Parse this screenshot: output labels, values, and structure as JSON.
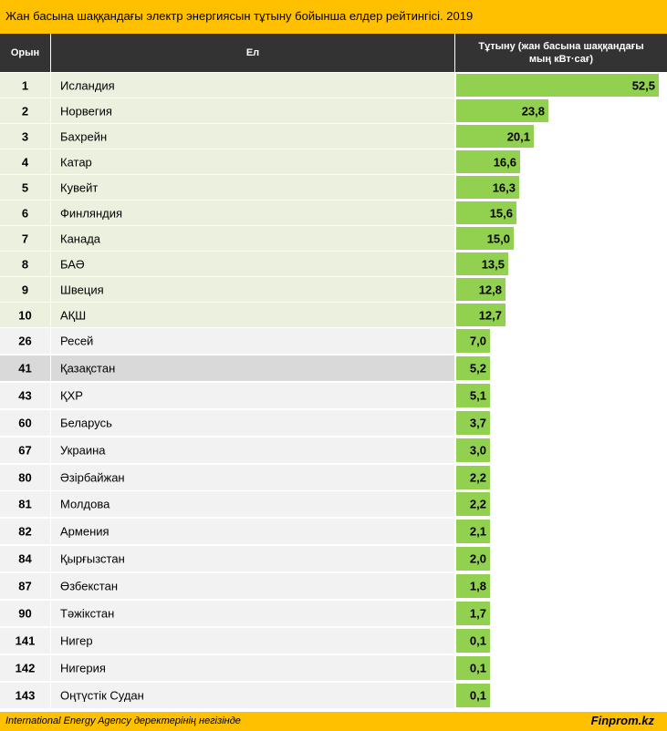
{
  "title": "Жан басына шаққандағы электр энергиясын тұтыну бойынша елдер рейтингісі. 2019",
  "header": {
    "rank": "Орын",
    "country": "Ел",
    "value_line1": "Тұтыну (жан басына шаққандағы",
    "value_line2": "мың  кВт·сағ)"
  },
  "colors": {
    "bar": "#92d050",
    "title_bg": "#ffc000",
    "header_bg": "#333333"
  },
  "chart_data": {
    "type": "bar",
    "orientation": "horizontal",
    "title": "Жан басына шаққандағы электр энергиясын тұтыну бойынша елдер рейтингісі. 2019",
    "xlabel": "Тұтыну (жан басына шаққандағы мың  кВт·сағ)",
    "ylabel": "Ел",
    "xlim": [
      0,
      52.5
    ],
    "rows": [
      {
        "rank": "1",
        "country": "Исландия",
        "value": 52.5,
        "label": "52,5"
      },
      {
        "rank": "2",
        "country": "Норвегия",
        "value": 23.8,
        "label": "23,8"
      },
      {
        "rank": "3",
        "country": "Бахрейн",
        "value": 20.1,
        "label": "20,1"
      },
      {
        "rank": "4",
        "country": "Катар",
        "value": 16.6,
        "label": "16,6"
      },
      {
        "rank": "5",
        "country": "Кувейт",
        "value": 16.3,
        "label": "16,3"
      },
      {
        "rank": "6",
        "country": "Финляндия",
        "value": 15.6,
        "label": "15,6"
      },
      {
        "rank": "7",
        "country": "Канада",
        "value": 15.0,
        "label": "15,0"
      },
      {
        "rank": "8",
        "country": "БАӘ",
        "value": 13.5,
        "label": "13,5"
      },
      {
        "rank": "9",
        "country": "Швеция",
        "value": 12.8,
        "label": "12,8"
      },
      {
        "rank": "10",
        "country": "АҚШ",
        "value": 12.7,
        "label": "12,7"
      },
      {
        "rank": "26",
        "country": "Ресей",
        "value": 7.0,
        "label": "7,0"
      },
      {
        "rank": "41",
        "country": "Қазақстан",
        "value": 5.2,
        "label": "5,2"
      },
      {
        "rank": "43",
        "country": "ҚХР",
        "value": 5.1,
        "label": "5,1"
      },
      {
        "rank": "60",
        "country": "Беларусь",
        "value": 3.7,
        "label": "3,7"
      },
      {
        "rank": "67",
        "country": "Украина",
        "value": 3.0,
        "label": "3,0"
      },
      {
        "rank": "80",
        "country": "Әзірбайжан",
        "value": 2.2,
        "label": "2,2"
      },
      {
        "rank": "81",
        "country": "Молдова",
        "value": 2.2,
        "label": "2,2"
      },
      {
        "rank": "82",
        "country": "Армения",
        "value": 2.1,
        "label": "2,1"
      },
      {
        "rank": "84",
        "country": "Қырғызстан",
        "value": 2.0,
        "label": "2,0"
      },
      {
        "rank": "87",
        "country": "Өзбекстан",
        "value": 1.8,
        "label": "1,8"
      },
      {
        "rank": "90",
        "country": "Тәжікстан",
        "value": 1.7,
        "label": "1,7"
      },
      {
        "rank": "141",
        "country": "Нигер",
        "value": 0.1,
        "label": "0,1"
      },
      {
        "rank": "142",
        "country": "Нигерия",
        "value": 0.1,
        "label": "0,1"
      },
      {
        "rank": "143",
        "country": "Оңтүстік Судан",
        "value": 0.1,
        "label": "0,1"
      }
    ]
  },
  "footer": {
    "source": "International Energy Agency деректерінің негізінде",
    "brand": "Finprom.kz"
  }
}
